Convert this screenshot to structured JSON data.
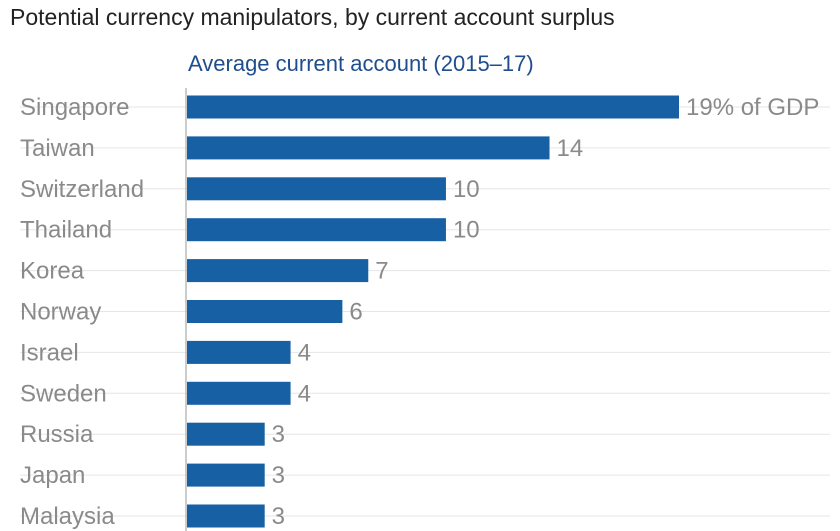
{
  "chart_data": {
    "type": "bar",
    "orientation": "horizontal",
    "title": "Potential currency manipulators, by current account surplus",
    "subtitle": "Average current account (2015–17)",
    "categories": [
      "Singapore",
      "Taiwan",
      "Switzerland",
      "Thailand",
      "Korea",
      "Norway",
      "Israel",
      "Sweden",
      "Russia",
      "Japan",
      "Malaysia"
    ],
    "values": [
      19,
      14,
      10,
      10,
      7,
      6,
      4,
      4,
      3,
      3,
      3
    ],
    "value_labels": [
      "19% of GDP",
      "14",
      "10",
      "10",
      "7",
      "6",
      "4",
      "4",
      "3",
      "3",
      "3"
    ],
    "bar_color": "#1660a3",
    "grid": true,
    "xlim": [
      0,
      19
    ]
  }
}
